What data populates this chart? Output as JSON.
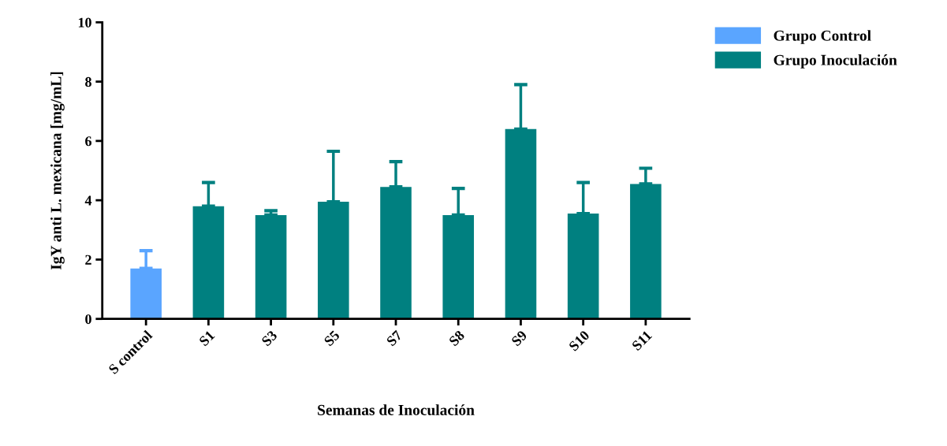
{
  "chart_data": {
    "type": "bar",
    "categories": [
      "S control",
      "S1",
      "S3",
      "S5",
      "S7",
      "S8",
      "S9",
      "S10",
      "S11"
    ],
    "series": [
      {
        "name": "Grupo Control",
        "color": "#5aa5ff",
        "values": [
          1.7,
          null,
          null,
          null,
          null,
          null,
          null,
          null,
          null
        ],
        "errors": [
          [
            1.7,
            2.3
          ],
          null,
          null,
          null,
          null,
          null,
          null,
          null,
          null
        ]
      },
      {
        "name": "Grupo Inoculación",
        "color": "#008080",
        "values": [
          null,
          3.8,
          3.5,
          3.95,
          4.45,
          3.5,
          6.4,
          3.55,
          4.55
        ],
        "errors": [
          null,
          [
            3.8,
            4.6
          ],
          [
            3.5,
            3.65
          ],
          [
            3.95,
            5.65
          ],
          [
            4.45,
            5.3
          ],
          [
            3.5,
            4.4
          ],
          [
            6.4,
            7.9
          ],
          [
            3.55,
            4.6
          ],
          [
            4.55,
            5.08
          ]
        ]
      }
    ],
    "xlabel": "Semanas de Inoculación",
    "ylabel": "IgY anti L. mexicana [mg/mL]",
    "ylim": [
      0,
      10
    ],
    "yticks": [
      0,
      2,
      4,
      6,
      8,
      10
    ],
    "grid": false,
    "legend": "top right"
  }
}
